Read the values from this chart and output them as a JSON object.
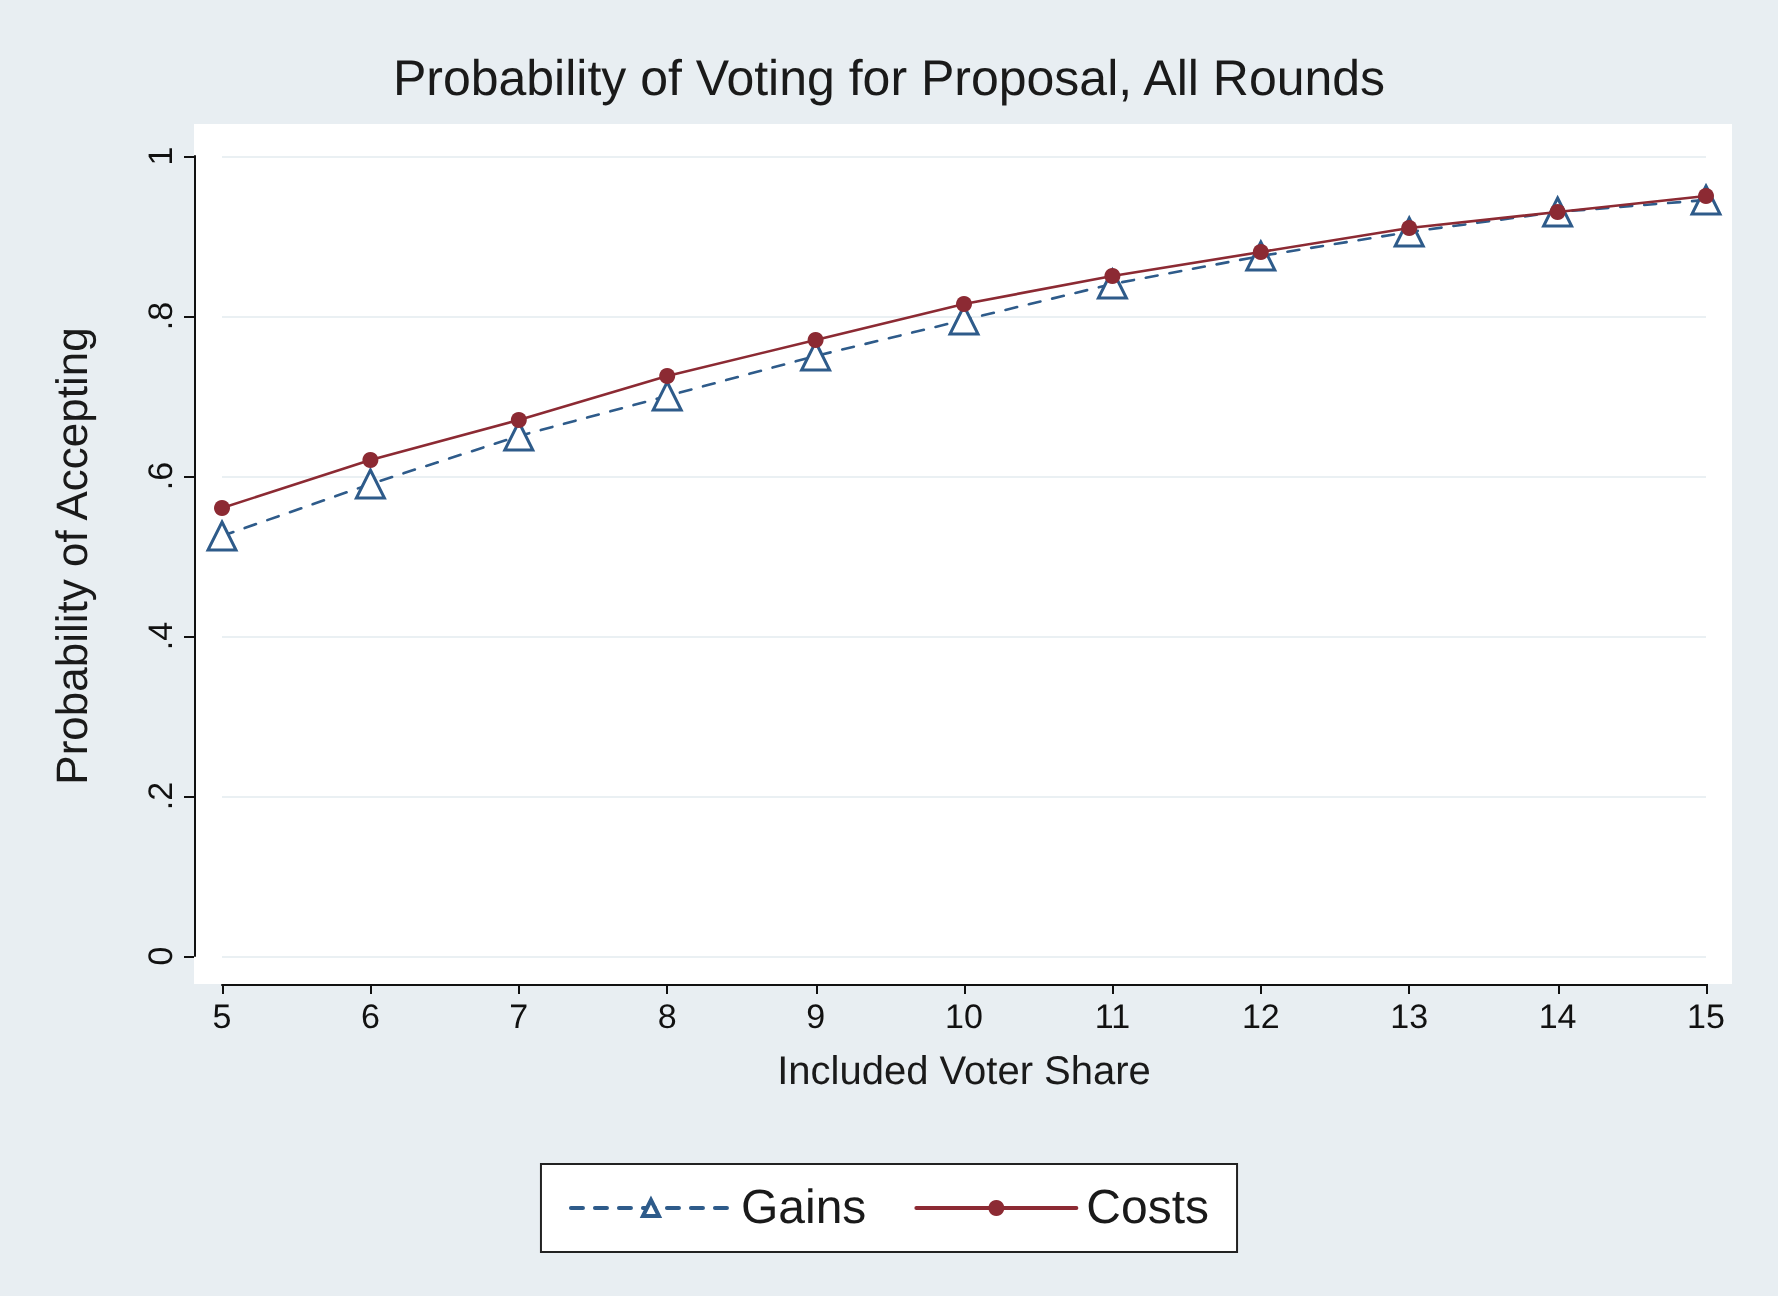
{
  "chart_data": {
    "type": "line",
    "title": "Probability of Voting for Proposal, All Rounds",
    "xlabel": "Included Voter Share",
    "ylabel": "Probability of Accepting",
    "x": [
      5,
      6,
      7,
      8,
      9,
      10,
      11,
      12,
      13,
      14,
      15
    ],
    "series": [
      {
        "name": "Gains",
        "color": "#2e5b8a",
        "marker": "triangle",
        "line_style": "dashed",
        "values": [
          0.525,
          0.59,
          0.65,
          0.7,
          0.75,
          0.795,
          0.84,
          0.875,
          0.905,
          0.93,
          0.945
        ]
      },
      {
        "name": "Costs",
        "color": "#8c2a33",
        "marker": "circle",
        "line_style": "solid",
        "values": [
          0.56,
          0.62,
          0.67,
          0.725,
          0.77,
          0.815,
          0.85,
          0.88,
          0.91,
          0.93,
          0.95
        ]
      }
    ],
    "xlim": [
      5,
      15
    ],
    "xticks": [
      5,
      6,
      7,
      8,
      9,
      10,
      11,
      12,
      13,
      14,
      15
    ],
    "ylim": [
      0,
      1
    ],
    "yticks": [
      {
        "value": 0,
        "label": "0"
      },
      {
        "value": 0.2,
        "label": ".2"
      },
      {
        "value": 0.4,
        "label": ".4"
      },
      {
        "value": 0.6,
        "label": ".6"
      },
      {
        "value": 0.8,
        "label": ".8"
      },
      {
        "value": 1,
        "label": "1"
      }
    ],
    "grid": "y",
    "legend": "bottom"
  }
}
